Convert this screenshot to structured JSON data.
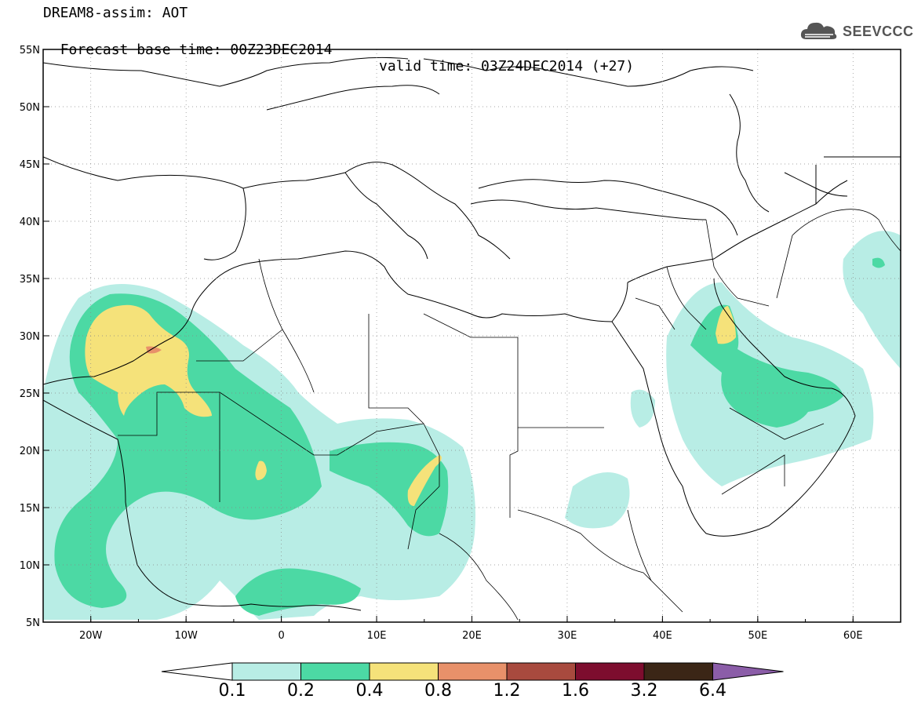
{
  "header": {
    "line1": "DREAM8-assim: AOT",
    "base_time": "Forecast base time: 00Z23DEC2014",
    "valid_time": "valid time: 03Z24DEC2014 (+27)"
  },
  "logo": {
    "text": "SEEVCCC",
    "icon": "cloud-icon"
  },
  "map": {
    "lon_range": [
      -25,
      65
    ],
    "lat_range": [
      5,
      55
    ],
    "lat_ticks": [
      "55N",
      "50N",
      "45N",
      "40N",
      "35N",
      "30N",
      "25N",
      "20N",
      "15N",
      "10N",
      "5N"
    ],
    "lon_ticks": [
      "20W",
      "10W",
      "0",
      "10E",
      "20E",
      "30E",
      "40E",
      "50E",
      "60E"
    ],
    "grid": "dotted"
  },
  "colorbar": {
    "labels": [
      "0.1",
      "0.2",
      "0.4",
      "0.8",
      "1.2",
      "1.6",
      "3.2",
      "6.4"
    ],
    "colors": [
      "#ffffff",
      "#b8ede5",
      "#4cd9a4",
      "#f5e27a",
      "#e8916a",
      "#a84a3e",
      "#7d0d2e",
      "#3b2616",
      "#8b5da8"
    ]
  }
}
